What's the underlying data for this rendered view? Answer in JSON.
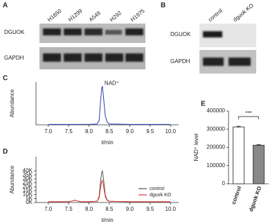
{
  "panel_labels": [
    "A",
    "B",
    "C",
    "D",
    "E"
  ],
  "blot_a": {
    "lanes": [
      "H1650",
      "H1299",
      "A549",
      "H292",
      "H1975"
    ],
    "rows": [
      "DGUOK",
      "GAPDH"
    ]
  },
  "blot_b": {
    "lanes": [
      "control",
      "dguok KO"
    ],
    "rows": [
      "DGUOK",
      "GAPDH"
    ]
  },
  "chart_data": [
    {
      "type": "line",
      "annotation": "NAD⁺",
      "x_label": "t/min",
      "y_label": "Abundance",
      "x": [
        7.0,
        7.5,
        8.0,
        8.2,
        8.25,
        8.28,
        8.31,
        8.33,
        8.36,
        8.4,
        8.45,
        8.5,
        9.0,
        9.5,
        10.0
      ],
      "values": [
        1,
        1,
        1,
        2,
        10,
        50,
        85,
        90,
        60,
        20,
        6,
        2,
        1,
        1,
        1
      ],
      "color": "#2b3bb0",
      "xlim": [
        6.7,
        10.2
      ],
      "ylim": [
        0,
        100
      ],
      "xticks": [
        {
          "value": 7.0,
          "label": "7.0"
        },
        7.5,
        {
          "value": 8.0,
          "label": "8.0"
        },
        8.5,
        {
          "value": 9.0,
          "label": "9.0"
        },
        9.5,
        {
          "value": 10.0,
          "label": "10.0"
        }
      ]
    },
    {
      "type": "line",
      "x_label": "t/min",
      "y_label": "Abundance",
      "x": [
        7.0,
        7.5,
        7.6,
        7.65,
        7.7,
        7.8,
        8.0,
        8.2,
        8.25,
        8.28,
        8.31,
        8.33,
        8.36,
        8.4,
        8.45,
        8.5,
        9.0,
        9.5,
        10.0
      ],
      "series": [
        {
          "name": "control",
          "color": "#555555",
          "values": [
            1000,
            1000,
            2000,
            3000,
            2000,
            1000,
            1000,
            1500,
            8000,
            25000,
            38000,
            40000,
            28000,
            9000,
            3000,
            1500,
            1000,
            1000,
            1000
          ]
        },
        {
          "name": "dguok KO",
          "color": "#e03030",
          "values": [
            1000,
            1000,
            2000,
            3000,
            2000,
            1000,
            1000,
            1500,
            6000,
            18000,
            27000,
            28000,
            20000,
            7000,
            2500,
            1500,
            1000,
            1000,
            1000
          ]
        }
      ],
      "xlim": [
        6.7,
        10.2
      ],
      "ylim": [
        0,
        58000
      ],
      "xticks": [
        {
          "value": 7.0,
          "label": "7.0"
        },
        7.5,
        {
          "value": 8.0,
          "label": "8.0"
        },
        8.5,
        {
          "value": 9.0,
          "label": "9.0"
        },
        9.5,
        {
          "value": 10.0,
          "label": "10.0"
        }
      ],
      "yticks": [
        {
          "value": 0,
          "label": "0K"
        },
        {
          "value": 5000,
          "label": "5K"
        },
        {
          "value": 10000,
          "label": "10K"
        },
        {
          "value": 15000,
          "label": "15K"
        },
        {
          "value": 20000,
          "label": "20K"
        },
        {
          "value": 25000,
          "label": "25K"
        },
        {
          "value": 30000,
          "label": "30K"
        },
        {
          "value": 35000,
          "label": "35K"
        },
        {
          "value": 40000,
          "label": "40K"
        }
      ],
      "legend": "upper right"
    },
    {
      "type": "bar",
      "y_label": "NAD⁺ level",
      "significance": "***",
      "categories": [
        "control",
        "dguok KO"
      ],
      "values": [
        312000,
        212000
      ],
      "errors": [
        4000,
        3000
      ],
      "colors": [
        "#ffffff",
        "#888888"
      ],
      "ylim": [
        0,
        400000
      ],
      "yticks": [
        0,
        100000,
        200000,
        300000,
        400000
      ]
    }
  ]
}
